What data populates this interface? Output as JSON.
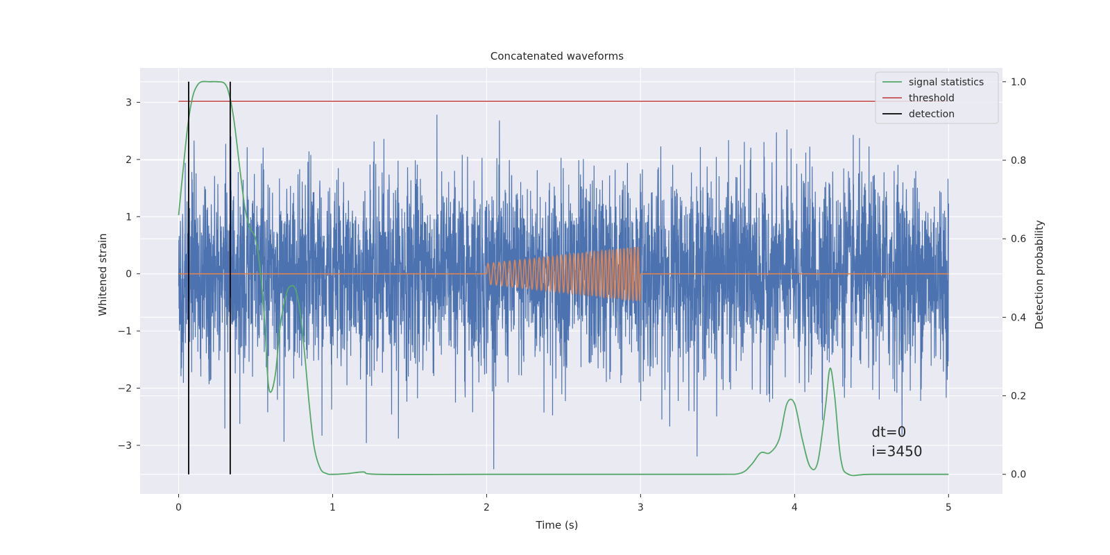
{
  "chart_data": {
    "type": "line",
    "title": "Concatenated waveforms",
    "xlabel": "Time (s)",
    "ylabel": "Whitened strain",
    "ylabel_right": "Detection probability",
    "xlim": [
      -0.25,
      5.35
    ],
    "ylim": [
      -3.85,
      3.6
    ],
    "ylim_right": [
      -0.05,
      1.035
    ],
    "x_ticks": [
      "0",
      "1",
      "2",
      "3",
      "4",
      "5"
    ],
    "x_tick_values": [
      0,
      1,
      2,
      3,
      4,
      5
    ],
    "y_ticks": [
      "−3",
      "−2",
      "−1",
      "0",
      "1",
      "2",
      "3"
    ],
    "y_tick_values": [
      -3,
      -2,
      -1,
      0,
      1,
      2,
      3
    ],
    "y_right_ticks": [
      "0.0",
      "0.2",
      "0.4",
      "0.6",
      "0.8",
      "1.0"
    ],
    "y_right_tick_values": [
      0.0,
      0.2,
      0.4,
      0.6,
      0.8,
      1.0
    ],
    "grid": true,
    "legend_position": "upper-right",
    "legend": [
      {
        "label": "signal statistics",
        "color": "#55a868"
      },
      {
        "label": "threshold",
        "color": "#c44e52"
      },
      {
        "label": "detection",
        "color": "#000000"
      }
    ],
    "series": {
      "whitened_strain": {
        "axis": "left",
        "color": "#4c72b0",
        "x_range": [
          0,
          5
        ],
        "amplitude_range": [
          -3.5,
          3.3
        ]
      },
      "injected_waveform": {
        "axis": "left",
        "color": "#dd8452",
        "flat_before": [
          0,
          2
        ],
        "chirp_range": [
          2,
          3
        ],
        "flat_after": [
          3,
          5
        ],
        "amplitude_start": 0.18,
        "amplitude_end": 0.48,
        "cycles": 36
      },
      "signal_statistics": {
        "name": "signal statistics",
        "axis": "right",
        "color": "#55a868",
        "x": [
          0.0,
          0.03,
          0.06,
          0.09,
          0.12,
          0.15,
          0.2,
          0.25,
          0.3,
          0.33,
          0.36,
          0.4,
          0.43,
          0.46,
          0.5,
          0.53,
          0.56,
          0.58,
          0.6,
          0.63,
          0.66,
          0.7,
          0.73,
          0.76,
          0.79,
          0.82,
          0.85,
          0.88,
          0.92,
          0.96,
          1.0,
          1.1,
          1.2,
          1.3,
          2.0,
          3.0,
          3.5,
          3.65,
          3.72,
          3.78,
          3.84,
          3.9,
          3.95,
          4.0,
          4.05,
          4.1,
          4.15,
          4.2,
          4.23,
          4.26,
          4.3,
          4.35,
          4.5,
          5.0
        ],
        "y": [
          0.66,
          0.78,
          0.89,
          0.96,
          0.99,
          1.0,
          1.0,
          1.0,
          0.995,
          0.965,
          0.9,
          0.77,
          0.68,
          0.63,
          0.6,
          0.52,
          0.38,
          0.24,
          0.21,
          0.26,
          0.38,
          0.46,
          0.48,
          0.47,
          0.41,
          0.3,
          0.17,
          0.07,
          0.015,
          0.002,
          0.0,
          0.002,
          0.006,
          0.0,
          0.0,
          0.0,
          0.0,
          0.003,
          0.025,
          0.055,
          0.055,
          0.09,
          0.18,
          0.18,
          0.09,
          0.02,
          0.03,
          0.17,
          0.27,
          0.2,
          0.04,
          0.0,
          0.0,
          0.0
        ]
      },
      "threshold": {
        "name": "threshold",
        "axis": "right",
        "color": "#c44e52",
        "x": [
          0,
          5
        ],
        "y": [
          0.95,
          0.95
        ]
      },
      "detections": {
        "name": "detection",
        "axis": "right",
        "color": "#000000",
        "x": [
          0.065,
          0.335
        ],
        "y_span": [
          0,
          1
        ]
      }
    },
    "annotation": {
      "line1": "dt=0",
      "line2": "i=3450",
      "x": 4.5,
      "y": -2.85
    }
  }
}
